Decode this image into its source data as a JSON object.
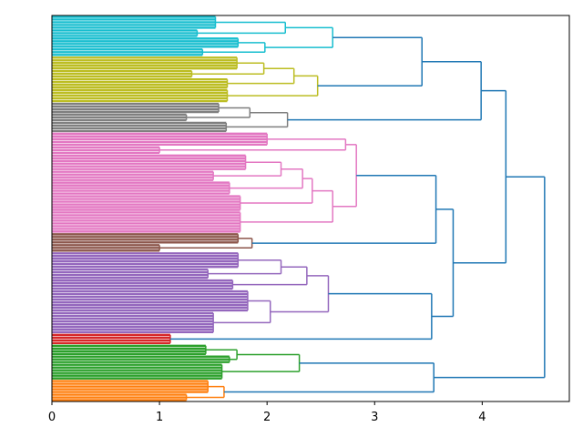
{
  "chart_data": {
    "type": "dendrogram",
    "orientation": "right",
    "xlim": [
      0,
      4.81
    ],
    "xticks": [
      0,
      1,
      2,
      3,
      4
    ],
    "link_color": "#1f77b4",
    "tree": {
      "height": 4.58,
      "children": [
        {
          "height": 4.22,
          "children": [
            {
              "height": 3.99,
              "children": [
                {
                  "height": 3.44,
                  "children": [
                    {
                      "height": 2.61,
                      "color": "#17becf",
                      "children": [
                        {
                          "height": 2.17,
                          "children": [
                            {
                              "height": 1.52,
                              "leaves": 5
                            },
                            {
                              "height": 1.35,
                              "leaves": 3
                            }
                          ]
                        },
                        {
                          "height": 1.98,
                          "children": [
                            {
                              "height": 1.73,
                              "leaves": 4
                            },
                            {
                              "height": 1.4,
                              "leaves": 3
                            }
                          ]
                        }
                      ]
                    },
                    {
                      "height": 2.47,
                      "color": "#bcbd22",
                      "children": [
                        {
                          "height": 2.25,
                          "children": [
                            {
                              "height": 1.97,
                              "children": [
                                {
                                  "height": 1.72,
                                  "leaves": 5
                                },
                                {
                                  "height": 1.3,
                                  "leaves": 3
                                }
                              ]
                            },
                            {
                              "height": 1.63,
                              "leaves": 4
                            }
                          ]
                        },
                        {
                          "height": 1.63,
                          "leaves": 5
                        }
                      ]
                    }
                  ]
                },
                {
                  "height": 2.19,
                  "color": "#7f7f7f",
                  "children": [
                    {
                      "height": 1.84,
                      "children": [
                        {
                          "height": 1.55,
                          "leaves": 4
                        },
                        {
                          "height": 1.25,
                          "leaves": 3
                        }
                      ]
                    },
                    {
                      "height": 1.62,
                      "leaves": 4
                    }
                  ]
                }
              ]
            },
            {
              "height": 3.73,
              "children": [
                {
                  "height": 3.57,
                  "children": [
                    {
                      "height": 2.83,
                      "color": "#e377c2",
                      "children": [
                        {
                          "height": 2.73,
                          "children": [
                            {
                              "height": 2.0,
                              "leaves": 5
                            },
                            {
                              "height": 1.0,
                              "leaves": 3
                            }
                          ]
                        },
                        {
                          "height": 2.61,
                          "children": [
                            {
                              "height": 2.42,
                              "children": [
                                {
                                  "height": 2.33,
                                  "children": [
                                    {
                                      "height": 2.13,
                                      "children": [
                                        {
                                          "height": 1.8,
                                          "leaves": 6
                                        },
                                        {
                                          "height": 1.5,
                                          "leaves": 4
                                        }
                                      ]
                                    },
                                    {
                                      "height": 1.65,
                                      "leaves": 5
                                    }
                                  ]
                                },
                                {
                                  "height": 1.75,
                                  "leaves": 6
                                }
                              ]
                            },
                            {
                              "height": 1.75,
                              "leaves": 8
                            }
                          ]
                        }
                      ]
                    },
                    {
                      "height": 1.86,
                      "color": "#8c564b",
                      "children": [
                        {
                          "height": 1.73,
                          "leaves": 4
                        },
                        {
                          "height": 1.0,
                          "leaves": 3
                        }
                      ]
                    }
                  ]
                },
                {
                  "height": 3.53,
                  "children": [
                    {
                      "height": 2.57,
                      "color": "#9467bd",
                      "children": [
                        {
                          "height": 2.37,
                          "children": [
                            {
                              "height": 2.13,
                              "children": [
                                {
                                  "height": 1.73,
                                  "leaves": 6
                                },
                                {
                                  "height": 1.45,
                                  "leaves": 4
                                }
                              ]
                            },
                            {
                              "height": 1.68,
                              "leaves": 4
                            }
                          ]
                        },
                        {
                          "height": 2.03,
                          "children": [
                            {
                              "height": 1.82,
                              "leaves": 8
                            },
                            {
                              "height": 1.5,
                              "leaves": 8
                            }
                          ]
                        }
                      ]
                    },
                    {
                      "height": 1.1,
                      "color": "#d62728",
                      "leaves": 4
                    }
                  ]
                }
              ]
            }
          ]
        },
        {
          "height": 3.55,
          "children": [
            {
              "height": 2.3,
              "color": "#2ca02c",
              "children": [
                {
                  "height": 1.72,
                  "children": [
                    {
                      "height": 1.43,
                      "leaves": 4
                    },
                    {
                      "height": 1.65,
                      "leaves": 3
                    }
                  ]
                },
                {
                  "height": 1.58,
                  "leaves": 6
                }
              ]
            },
            {
              "height": 1.6,
              "color": "#ff7f0e",
              "children": [
                {
                  "height": 1.45,
                  "leaves": 5
                },
                {
                  "height": 1.25,
                  "leaves": 3
                }
              ]
            }
          ]
        }
      ]
    }
  }
}
